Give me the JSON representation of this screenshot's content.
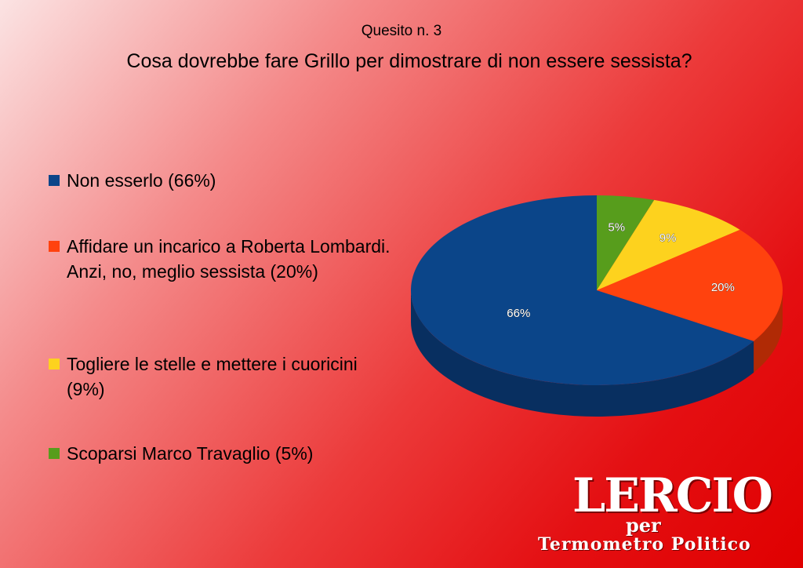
{
  "chart_data": {
    "type": "pie",
    "subtitle": "Quesito n. 3",
    "title": "Cosa dovrebbe fare Grillo per dimostrare di non essere sessista?",
    "legend_position": "left",
    "slices": [
      {
        "legend": "Non esserlo (66%)",
        "label": "66%",
        "value": 66,
        "color": "#0b4589",
        "side": "#082f60"
      },
      {
        "legend": "Affidare un incarico a Roberta Lombardi. Anzi, no, meglio sessista (20%)",
        "label": "20%",
        "value": 20,
        "color": "#ff420e",
        "side": "#b02a05"
      },
      {
        "legend": "Togliere le stelle e mettere i cuoricini (9%)",
        "label": "9%",
        "value": 9,
        "color": "#fdd21e",
        "side": "#b39200"
      },
      {
        "legend": "Scoparsi Marco Travaglio (5%)",
        "label": "5%",
        "value": 5,
        "color": "#579d1c",
        "side": "#3a6a12"
      }
    ]
  },
  "logo": {
    "main": "LERCIO",
    "per": "per",
    "sub": "Termometro Politico"
  }
}
